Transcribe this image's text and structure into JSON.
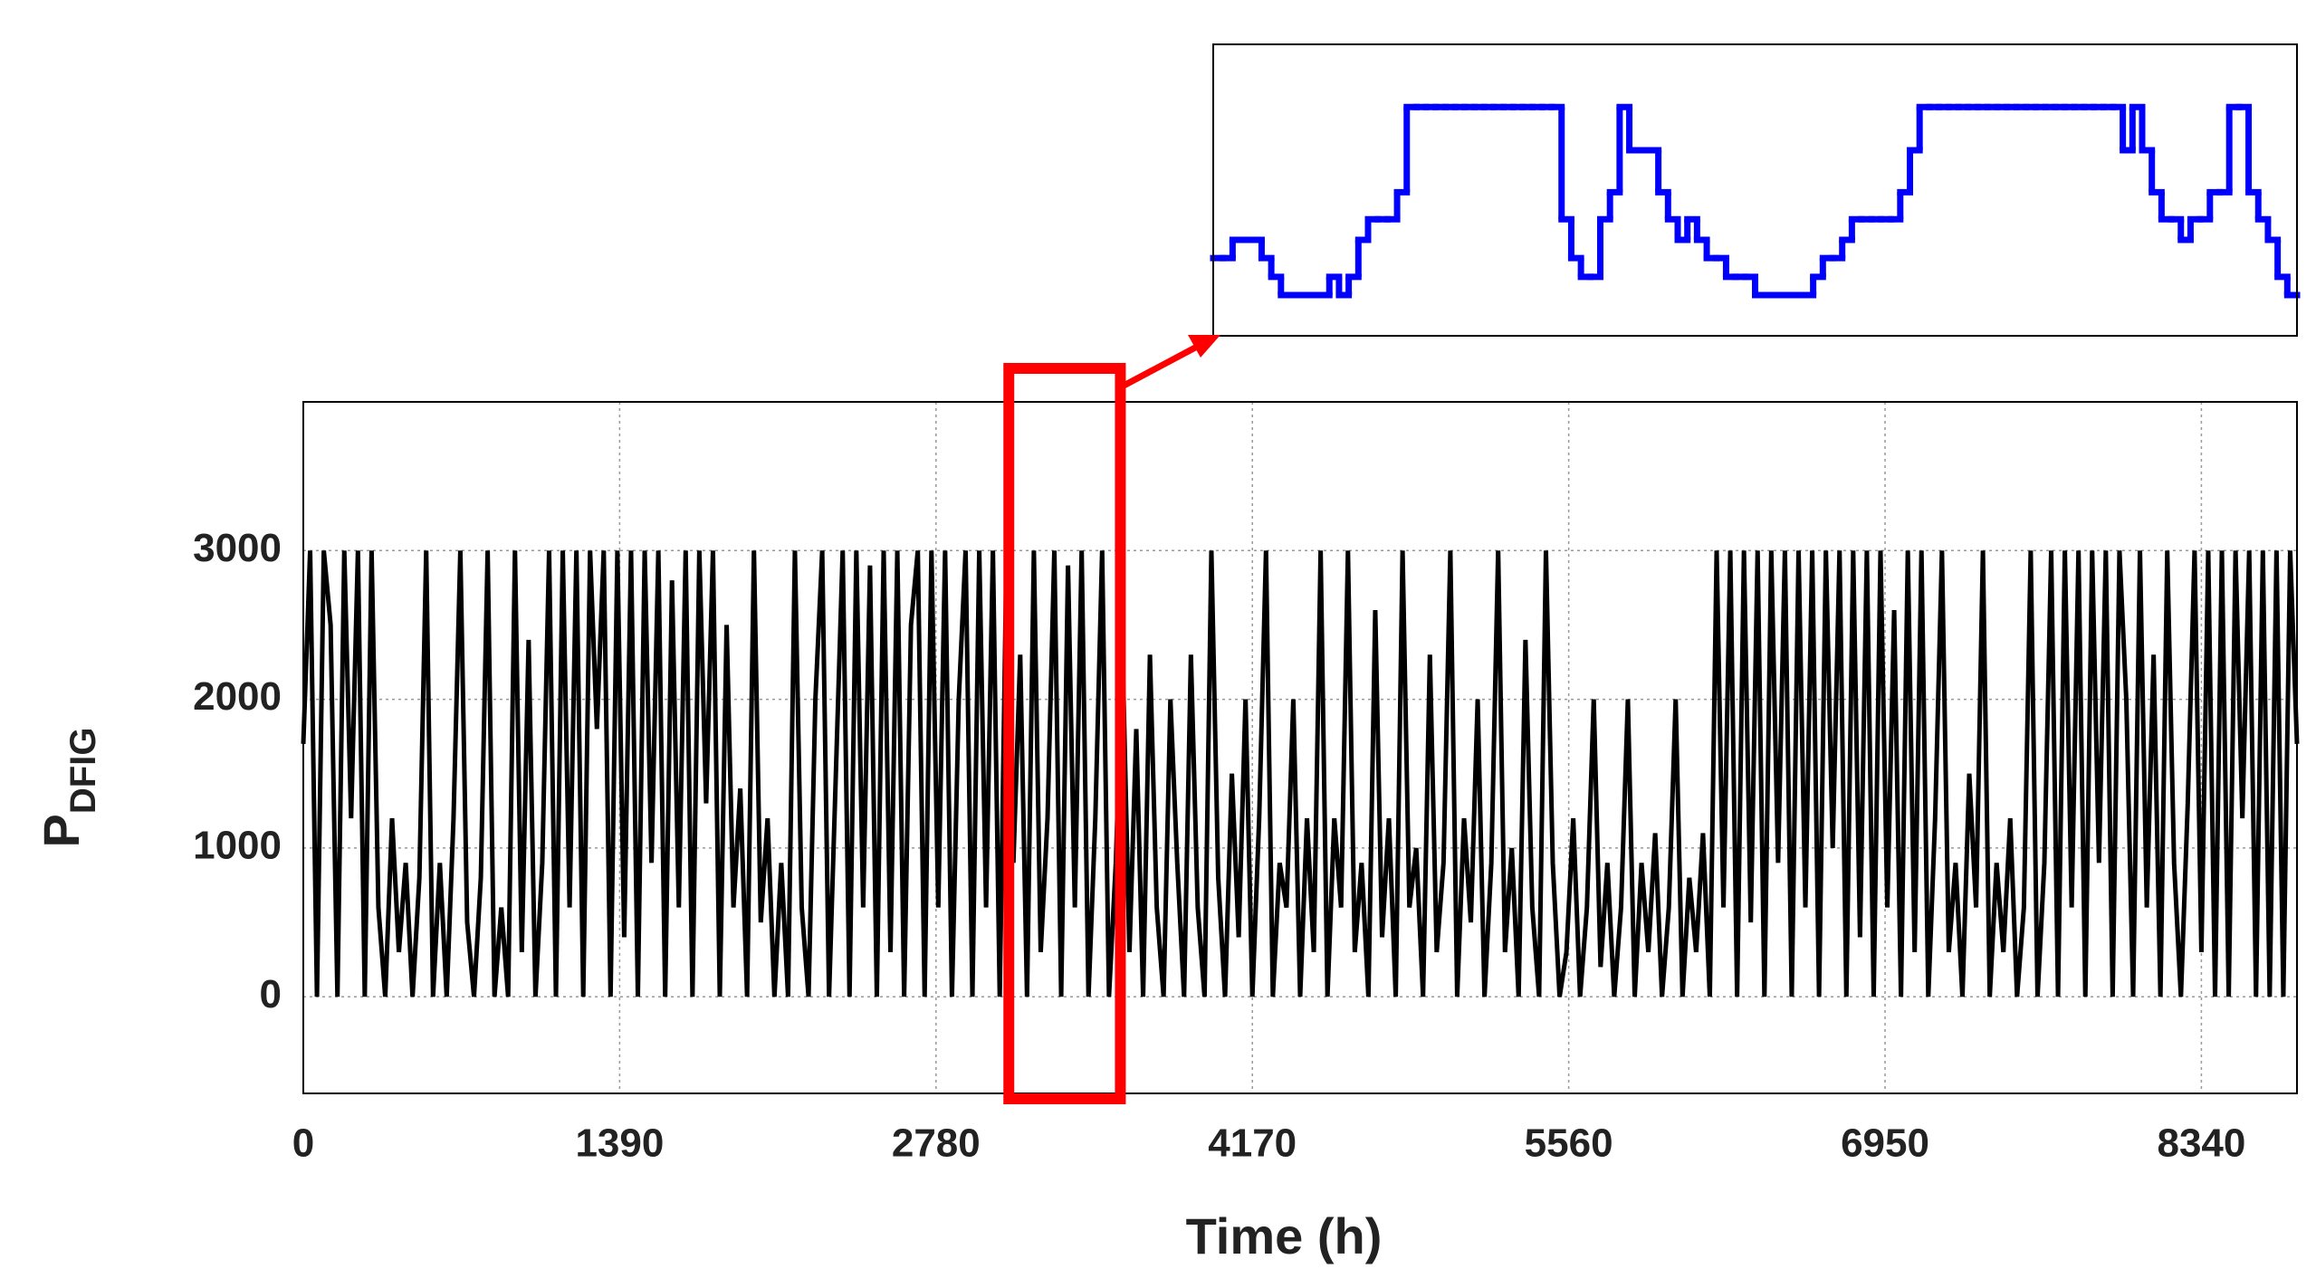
{
  "chart_data": {
    "type": "line",
    "xlabel": "Time (h)",
    "ylabel": "P",
    "ylabel_subscript": "DFIG",
    "xlim": [
      0,
      8760
    ],
    "ylim": [
      -650,
      4000
    ],
    "xticks": [
      0,
      1390,
      2780,
      4170,
      5560,
      6950,
      8340
    ],
    "yticks": [
      0,
      1000,
      2000,
      3000
    ],
    "grid": true,
    "x": [
      0,
      30,
      60,
      90,
      120,
      150,
      180,
      210,
      240,
      270,
      300,
      330,
      360,
      390,
      420,
      450,
      480,
      510,
      540,
      570,
      600,
      630,
      660,
      690,
      720,
      750,
      780,
      810,
      840,
      870,
      900,
      930,
      960,
      990,
      1020,
      1050,
      1080,
      1110,
      1140,
      1170,
      1200,
      1230,
      1260,
      1290,
      1320,
      1350,
      1380,
      1410,
      1440,
      1470,
      1500,
      1530,
      1560,
      1590,
      1620,
      1650,
      1680,
      1710,
      1740,
      1770,
      1800,
      1830,
      1860,
      1890,
      1920,
      1950,
      1980,
      2010,
      2040,
      2070,
      2100,
      2130,
      2160,
      2190,
      2220,
      2250,
      2280,
      2310,
      2340,
      2370,
      2400,
      2430,
      2460,
      2490,
      2520,
      2550,
      2580,
      2610,
      2640,
      2670,
      2700,
      2730,
      2760,
      2790,
      2820,
      2850,
      2880,
      2910,
      2940,
      2970,
      3000,
      3030,
      3060,
      3090,
      3120,
      3150,
      3180,
      3210,
      3240,
      3270,
      3300,
      3330,
      3360,
      3390,
      3420,
      3450,
      3480,
      3510,
      3540,
      3570,
      3600,
      3630,
      3660,
      3690,
      3720,
      3750,
      3780,
      3810,
      3840,
      3870,
      3900,
      3930,
      3960,
      3990,
      4020,
      4050,
      4080,
      4110,
      4140,
      4170,
      4200,
      4230,
      4260,
      4290,
      4320,
      4350,
      4380,
      4410,
      4440,
      4470,
      4500,
      4530,
      4560,
      4590,
      4620,
      4650,
      4680,
      4710,
      4740,
      4770,
      4800,
      4830,
      4860,
      4890,
      4920,
      4950,
      4980,
      5010,
      5040,
      5070,
      5100,
      5130,
      5160,
      5190,
      5220,
      5250,
      5280,
      5310,
      5340,
      5370,
      5400,
      5430,
      5460,
      5490,
      5520,
      5550,
      5580,
      5610,
      5640,
      5670,
      5700,
      5730,
      5760,
      5790,
      5820,
      5850,
      5880,
      5910,
      5940,
      5970,
      6000,
      6030,
      6060,
      6090,
      6120,
      6150,
      6180,
      6210,
      6240,
      6270,
      6300,
      6330,
      6360,
      6390,
      6420,
      6450,
      6480,
      6510,
      6540,
      6570,
      6600,
      6630,
      6660,
      6690,
      6720,
      6750,
      6780,
      6810,
      6840,
      6870,
      6900,
      6930,
      6960,
      6990,
      7020,
      7050,
      7080,
      7110,
      7140,
      7170,
      7200,
      7230,
      7260,
      7290,
      7320,
      7350,
      7380,
      7410,
      7440,
      7470,
      7500,
      7530,
      7560,
      7590,
      7620,
      7650,
      7680,
      7710,
      7740,
      7770,
      7800,
      7830,
      7860,
      7890,
      7920,
      7950,
      7980,
      8010,
      8040,
      8070,
      8100,
      8130,
      8160,
      8190,
      8220,
      8250,
      8280,
      8310,
      8340,
      8370,
      8400,
      8430,
      8460,
      8490,
      8520,
      8550,
      8580,
      8610,
      8640,
      8670,
      8700,
      8730,
      8760
    ],
    "series": [
      {
        "color": "#000000",
        "values": [
          1700,
          3000,
          0,
          3000,
          2500,
          0,
          3000,
          1200,
          3000,
          0,
          3000,
          600,
          0,
          1200,
          300,
          900,
          0,
          800,
          3000,
          0,
          900,
          0,
          1200,
          3000,
          500,
          0,
          800,
          3000,
          0,
          600,
          0,
          3000,
          300,
          2400,
          0,
          900,
          3000,
          0,
          3000,
          600,
          3000,
          0,
          3000,
          1800,
          3000,
          0,
          3000,
          400,
          3000,
          0,
          3000,
          900,
          3000,
          0,
          2800,
          600,
          3000,
          0,
          3000,
          1300,
          3000,
          0,
          2500,
          600,
          1400,
          0,
          3000,
          500,
          1200,
          0,
          900,
          0,
          3000,
          600,
          0,
          2000,
          3000,
          0,
          1500,
          3000,
          0,
          3000,
          600,
          2900,
          0,
          3000,
          300,
          3000,
          0,
          2500,
          3000,
          0,
          3000,
          600,
          3000,
          0,
          2000,
          3000,
          0,
          3000,
          600,
          3000,
          0,
          3000,
          900,
          2300,
          0,
          3000,
          300,
          1200,
          3000,
          0,
          2900,
          600,
          3000,
          0,
          1200,
          3000,
          0,
          900,
          2300,
          300,
          1800,
          0,
          2300,
          600,
          0,
          2000,
          900,
          0,
          2300,
          600,
          0,
          3000,
          800,
          0,
          1500,
          400,
          2000,
          0,
          1200,
          3000,
          0,
          900,
          600,
          2000,
          0,
          1200,
          300,
          3000,
          0,
          1200,
          600,
          3000,
          300,
          900,
          0,
          2600,
          400,
          1200,
          0,
          3000,
          600,
          1000,
          0,
          2300,
          300,
          900,
          3000,
          0,
          1200,
          500,
          2000,
          0,
          900,
          3000,
          300,
          1000,
          0,
          2400,
          600,
          0,
          3000,
          900,
          0,
          300,
          1200,
          0,
          600,
          2000,
          200,
          900,
          0,
          600,
          2000,
          0,
          900,
          300,
          1100,
          0,
          600,
          2000,
          0,
          800,
          300,
          1100,
          0,
          3000,
          600,
          3000,
          0,
          3000,
          500,
          3000,
          0,
          3000,
          900,
          3000,
          0,
          3000,
          600,
          3000,
          0,
          3000,
          1000,
          3000,
          0,
          3000,
          400,
          3000,
          0,
          3000,
          600,
          2600,
          0,
          3000,
          300,
          3000,
          0,
          1200,
          3000,
          300,
          900,
          0,
          1500,
          600,
          3000,
          0,
          900,
          300,
          1200,
          0,
          600,
          3000,
          0,
          900,
          3000,
          0,
          3000,
          600,
          3000,
          0,
          3000,
          900,
          3000,
          0,
          3000,
          2000,
          0,
          3000,
          600,
          2300,
          0,
          3000,
          900,
          0,
          1300,
          3000,
          300,
          3000,
          0,
          3000,
          0,
          3000,
          1200,
          3000,
          0,
          3000,
          0,
          3000,
          0,
          3000,
          1700
        ]
      }
    ],
    "highlight_xlim": [
      3100,
      3590
    ],
    "highlight_color": "#ff0000",
    "inset": {
      "drawstyle": "steps",
      "color": "#0000ff",
      "ylim": [
        -650,
        4000
      ],
      "values": [
        590,
        590,
        880,
        880,
        880,
        590,
        290,
        0,
        0,
        0,
        0,
        0,
        290,
        0,
        290,
        880,
        1210,
        1210,
        1210,
        1640,
        3000,
        3000,
        3000,
        3000,
        3000,
        3000,
        3000,
        3000,
        3000,
        3000,
        3000,
        3000,
        3000,
        3000,
        3000,
        3000,
        1210,
        590,
        290,
        290,
        1210,
        1640,
        3000,
        2310,
        2310,
        2310,
        1640,
        1210,
        880,
        1210,
        880,
        590,
        590,
        290,
        290,
        290,
        0,
        0,
        0,
        0,
        0,
        0,
        290,
        590,
        590,
        880,
        1210,
        1210,
        1210,
        1210,
        1210,
        1640,
        2310,
        3000,
        3000,
        3000,
        3000,
        3000,
        3000,
        3000,
        3000,
        3000,
        3000,
        3000,
        3000,
        3000,
        3000,
        3000,
        3000,
        3000,
        3000,
        3000,
        3000,
        3000,
        2310,
        3000,
        2310,
        1640,
        1210,
        1210,
        880,
        1210,
        1210,
        1640,
        1640,
        3000,
        3000,
        1640,
        1210,
        880,
        290,
        0
      ]
    }
  }
}
